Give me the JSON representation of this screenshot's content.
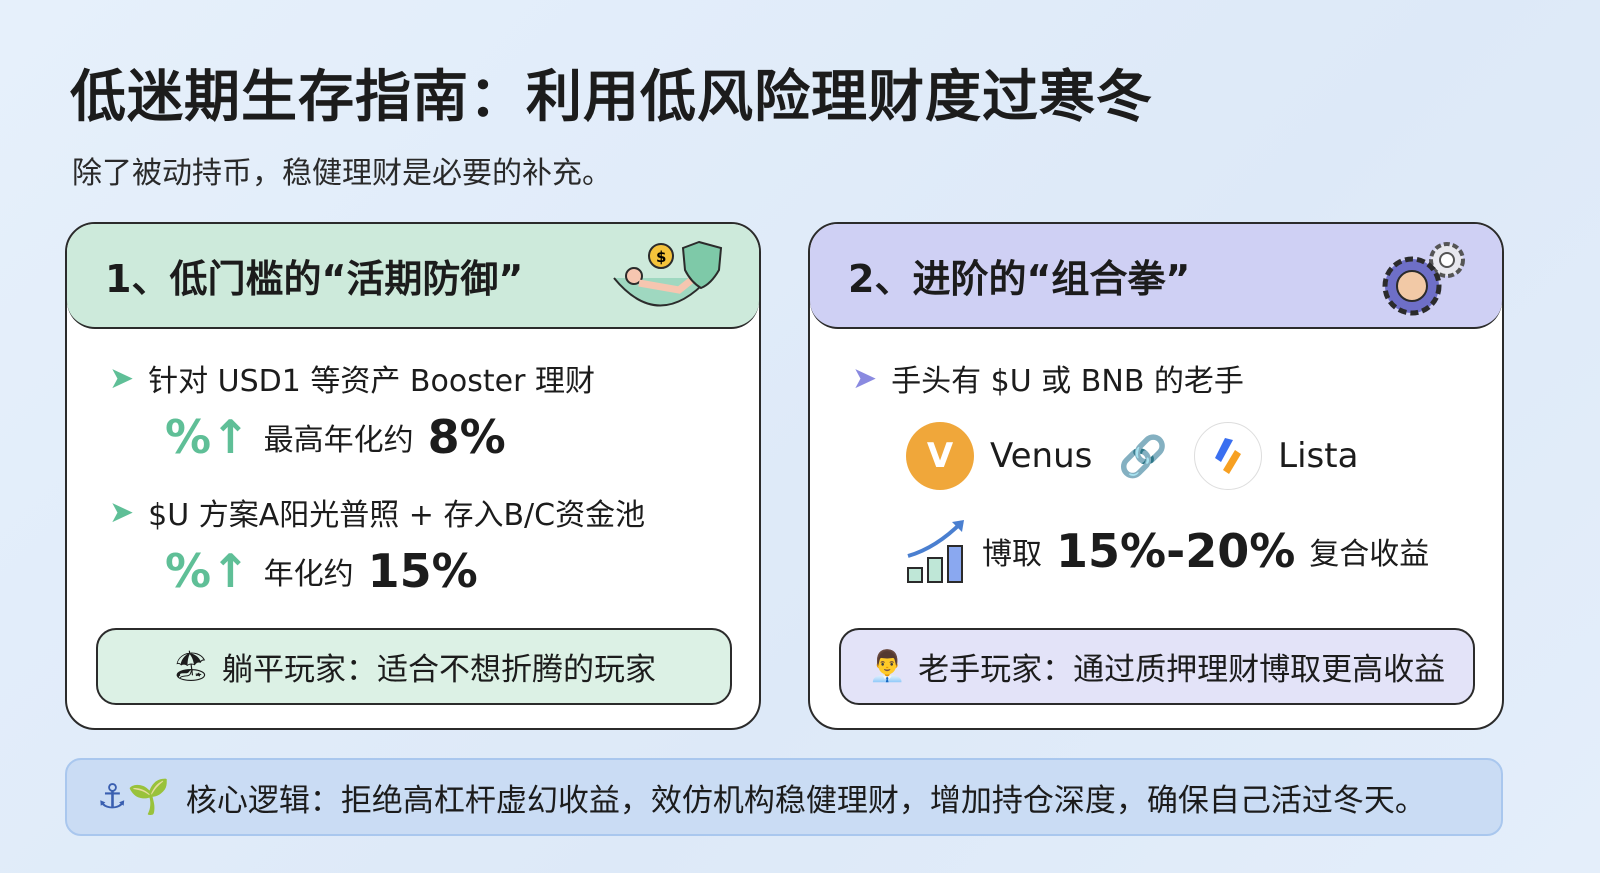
{
  "title": "低迷期生存指南：利用低风险理财度过寒冬",
  "subtitle": "除了被动持币，稳健理财是必要的补充。",
  "colors": {
    "green_header": "#cdeadb",
    "purple_header": "#cfd0f4",
    "bar": "#cadcf4"
  },
  "card1": {
    "heading": "1、低门槛的“活期防御”",
    "icon": "hammock-shield-icon",
    "bullet1": "针对 USD1 等资产 Booster 理财",
    "rate1_label": "最高年化约",
    "rate1_value": "8%",
    "bullet2": "$U 方案A阳光普照 + 存入B/C资金池",
    "rate2_label": "年化约",
    "rate2_value": "15%",
    "tip": "躺平玩家：适合不想折腾的玩家"
  },
  "card2": {
    "heading": "2、进阶的“组合拳”",
    "icon": "gear-fist-icon",
    "bullet1": "手头有 $U 或 BNB 的老手",
    "protocol1": "Venus",
    "protocol2": "Lista",
    "yield_prefix": "博取",
    "yield_value": "15%-20%",
    "yield_suffix": "复合收益",
    "tip": "老手玩家：通过质押理财博取更高收益"
  },
  "footer": "核心逻辑：拒绝高杠杆虚幻收益，效仿机构稳健理财，增加持仓深度，确保自己活过冬天。"
}
